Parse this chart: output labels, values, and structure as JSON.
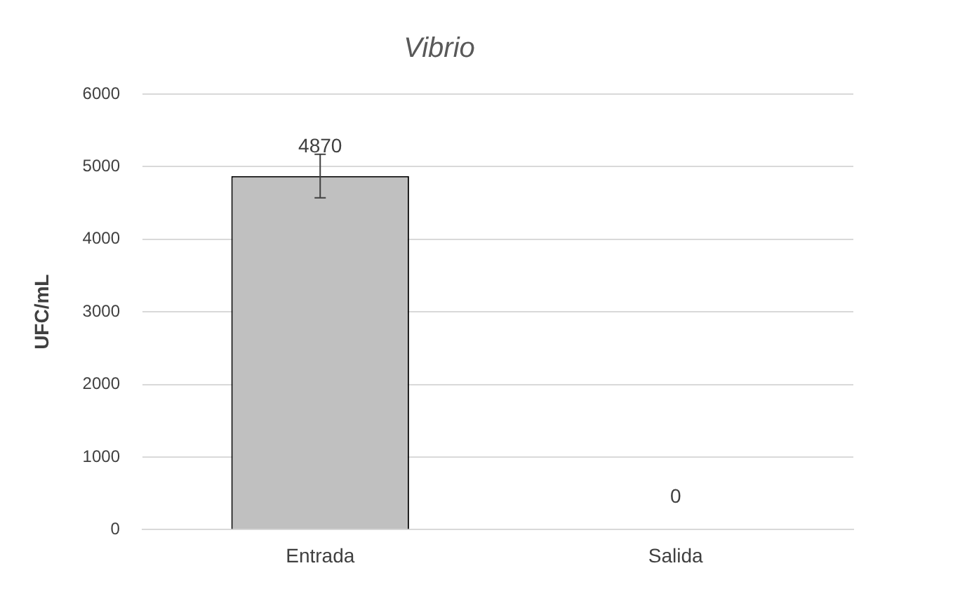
{
  "chart_data": {
    "type": "bar",
    "title": "Vibrio",
    "ylabel": "UFC/mL",
    "categories": [
      "Entrada",
      "Salida"
    ],
    "values": [
      4870,
      0
    ],
    "errors": [
      300,
      null
    ],
    "color": "#c0c0c0",
    "ylim": [
      0,
      6000
    ],
    "yticks": [
      0,
      1000,
      2000,
      3000,
      4000,
      5000,
      6000
    ],
    "grid": "y",
    "data_labels": true
  }
}
